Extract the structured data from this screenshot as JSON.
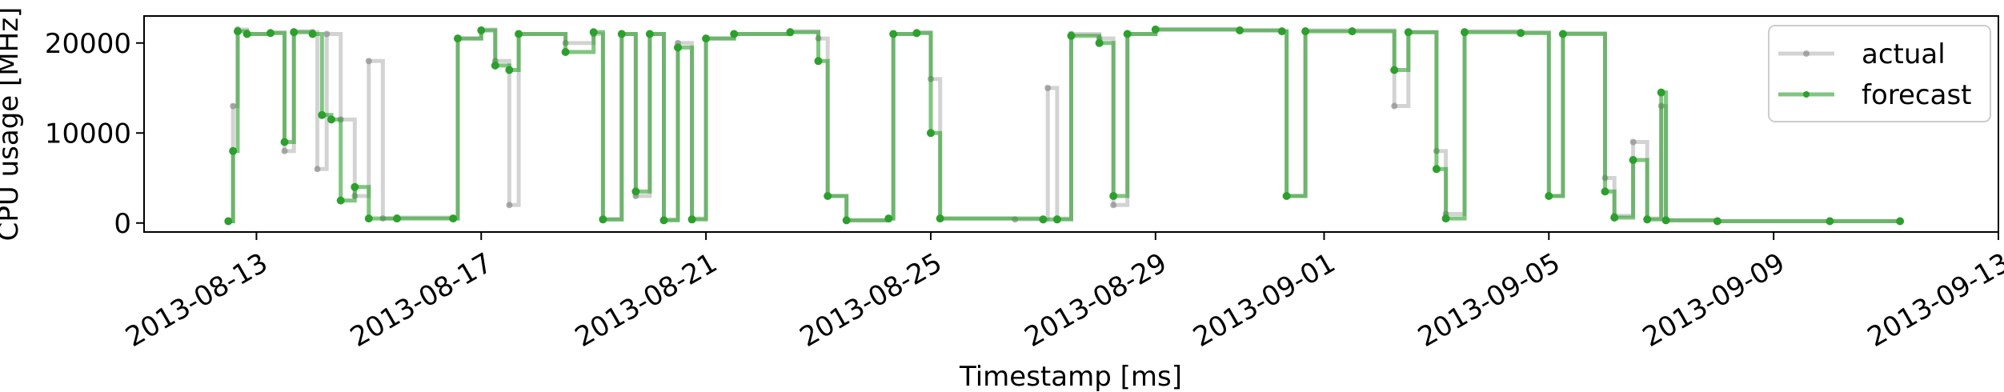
{
  "chart_data": {
    "type": "line",
    "xlabel": "Timestamp [ms]",
    "ylabel": "CPU usage [MHz]",
    "x_ticks": [
      "2013-08-13",
      "2013-08-17",
      "2013-08-21",
      "2013-08-25",
      "2013-08-29",
      "2013-09-01",
      "2013-09-05",
      "2013-09-09",
      "2013-09-13"
    ],
    "x_range": [
      "2013-08-11",
      "2013-09-13"
    ],
    "y_ticks": [
      "0",
      "10000",
      "20000"
    ],
    "ylim": [
      -1000,
      23000
    ],
    "grid": false,
    "legend_position": "top-right",
    "series": [
      {
        "name": "actual",
        "color": "#808080",
        "data": [
          [
            "2013-08-12T12:00",
            200
          ],
          [
            "2013-08-12T14:00",
            13000
          ],
          [
            "2013-08-12T16:00",
            21500
          ],
          [
            "2013-08-12T20:00",
            21000
          ],
          [
            "2013-08-13T06:00",
            21200
          ],
          [
            "2013-08-13T12:00",
            8000
          ],
          [
            "2013-08-13T16:00",
            21300
          ],
          [
            "2013-08-14T00:00",
            21200
          ],
          [
            "2013-08-14T02:00",
            6000
          ],
          [
            "2013-08-14T06:00",
            21000
          ],
          [
            "2013-08-14T12:00",
            11500
          ],
          [
            "2013-08-14T18:00",
            3000
          ],
          [
            "2013-08-15T00:00",
            18000
          ],
          [
            "2013-08-15T06:00",
            500
          ],
          [
            "2013-08-15T12:00",
            600
          ],
          [
            "2013-08-16T12:00",
            500
          ],
          [
            "2013-08-16T14:00",
            20500
          ],
          [
            "2013-08-17T00:00",
            21500
          ],
          [
            "2013-08-17T06:00",
            18000
          ],
          [
            "2013-08-17T12:00",
            2000
          ],
          [
            "2013-08-17T16:00",
            21000
          ],
          [
            "2013-08-18T12:00",
            20000
          ],
          [
            "2013-08-19T00:00",
            21000
          ],
          [
            "2013-08-19T04:00",
            400
          ],
          [
            "2013-08-19T12:00",
            21000
          ],
          [
            "2013-08-19T18:00",
            3000
          ],
          [
            "2013-08-20T00:00",
            21000
          ],
          [
            "2013-08-20T06:00",
            400
          ],
          [
            "2013-08-20T12:00",
            20000
          ],
          [
            "2013-08-20T18:00",
            500
          ],
          [
            "2013-08-21T00:00",
            20500
          ],
          [
            "2013-08-21T12:00",
            21000
          ],
          [
            "2013-08-22T12:00",
            21300
          ],
          [
            "2013-08-23T00:00",
            20500
          ],
          [
            "2013-08-23T04:00",
            3000
          ],
          [
            "2013-08-23T12:00",
            300
          ],
          [
            "2013-08-24T06:00",
            500
          ],
          [
            "2013-08-24T08:00",
            21000
          ],
          [
            "2013-08-24T18:00",
            21200
          ],
          [
            "2013-08-25T00:00",
            16000
          ],
          [
            "2013-08-25T04:00",
            500
          ],
          [
            "2013-08-26T12:00",
            400
          ],
          [
            "2013-08-27T00:00",
            400
          ],
          [
            "2013-08-27T02:00",
            15000
          ],
          [
            "2013-08-27T06:00",
            500
          ],
          [
            "2013-08-27T12:00",
            21000
          ],
          [
            "2013-08-28T00:00",
            20500
          ],
          [
            "2013-08-28T06:00",
            2000
          ],
          [
            "2013-08-28T12:00",
            21000
          ],
          [
            "2013-08-29T00:00",
            21500
          ],
          [
            "2013-08-30T12:00",
            21400
          ],
          [
            "2013-08-31T06:00",
            21300
          ],
          [
            "2013-08-31T08:00",
            3000
          ],
          [
            "2013-08-31T16:00",
            21400
          ],
          [
            "2013-09-01T12:00",
            21400
          ],
          [
            "2013-09-02T06:00",
            13000
          ],
          [
            "2013-09-02T12:00",
            21200
          ],
          [
            "2013-09-03T00:00",
            8000
          ],
          [
            "2013-09-03T04:00",
            1000
          ],
          [
            "2013-09-03T12:00",
            21300
          ],
          [
            "2013-09-04T12:00",
            21200
          ],
          [
            "2013-09-05T00:00",
            3000
          ],
          [
            "2013-09-05T06:00",
            21100
          ],
          [
            "2013-09-06T00:00",
            5000
          ],
          [
            "2013-09-06T04:00",
            800
          ],
          [
            "2013-09-06T12:00",
            9000
          ],
          [
            "2013-09-06T18:00",
            500
          ],
          [
            "2013-09-07T00:00",
            13000
          ],
          [
            "2013-09-07T02:00",
            300
          ],
          [
            "2013-09-08T00:00",
            200
          ],
          [
            "2013-09-10T00:00",
            200
          ],
          [
            "2013-09-11T06:00",
            200
          ]
        ]
      },
      {
        "name": "forecast",
        "color": "#2ca02c",
        "data": [
          [
            "2013-08-12T12:00",
            200
          ],
          [
            "2013-08-12T14:00",
            8000
          ],
          [
            "2013-08-12T16:00",
            21300
          ],
          [
            "2013-08-12T20:00",
            21000
          ],
          [
            "2013-08-13T06:00",
            21100
          ],
          [
            "2013-08-13T12:00",
            9000
          ],
          [
            "2013-08-13T16:00",
            21200
          ],
          [
            "2013-08-14T00:00",
            21000
          ],
          [
            "2013-08-14T04:00",
            12000
          ],
          [
            "2013-08-14T08:00",
            11500
          ],
          [
            "2013-08-14T12:00",
            2500
          ],
          [
            "2013-08-14T18:00",
            4000
          ],
          [
            "2013-08-15T00:00",
            500
          ],
          [
            "2013-08-15T12:00",
            500
          ],
          [
            "2013-08-16T12:00",
            500
          ],
          [
            "2013-08-16T14:00",
            20500
          ],
          [
            "2013-08-17T00:00",
            21400
          ],
          [
            "2013-08-17T06:00",
            17500
          ],
          [
            "2013-08-17T12:00",
            17000
          ],
          [
            "2013-08-17T16:00",
            21000
          ],
          [
            "2013-08-18T12:00",
            19000
          ],
          [
            "2013-08-19T00:00",
            21200
          ],
          [
            "2013-08-19T04:00",
            400
          ],
          [
            "2013-08-19T12:00",
            21000
          ],
          [
            "2013-08-19T18:00",
            3500
          ],
          [
            "2013-08-20T00:00",
            21000
          ],
          [
            "2013-08-20T06:00",
            300
          ],
          [
            "2013-08-20T12:00",
            19500
          ],
          [
            "2013-08-20T18:00",
            400
          ],
          [
            "2013-08-21T00:00",
            20500
          ],
          [
            "2013-08-21T12:00",
            21000
          ],
          [
            "2013-08-22T12:00",
            21200
          ],
          [
            "2013-08-23T00:00",
            18000
          ],
          [
            "2013-08-23T04:00",
            3000
          ],
          [
            "2013-08-23T12:00",
            300
          ],
          [
            "2013-08-24T06:00",
            500
          ],
          [
            "2013-08-24T08:00",
            21000
          ],
          [
            "2013-08-24T18:00",
            21100
          ],
          [
            "2013-08-25T00:00",
            10000
          ],
          [
            "2013-08-25T04:00",
            500
          ],
          [
            "2013-08-27T00:00",
            400
          ],
          [
            "2013-08-27T06:00",
            400
          ],
          [
            "2013-08-27T12:00",
            20800
          ],
          [
            "2013-08-28T00:00",
            20000
          ],
          [
            "2013-08-28T06:00",
            3000
          ],
          [
            "2013-08-28T12:00",
            21000
          ],
          [
            "2013-08-29T00:00",
            21500
          ],
          [
            "2013-08-30T12:00",
            21400
          ],
          [
            "2013-08-31T06:00",
            21300
          ],
          [
            "2013-08-31T08:00",
            3000
          ],
          [
            "2013-08-31T16:00",
            21300
          ],
          [
            "2013-09-01T12:00",
            21300
          ],
          [
            "2013-09-02T06:00",
            17000
          ],
          [
            "2013-09-02T12:00",
            21200
          ],
          [
            "2013-09-03T00:00",
            6000
          ],
          [
            "2013-09-03T04:00",
            500
          ],
          [
            "2013-09-03T12:00",
            21200
          ],
          [
            "2013-09-04T12:00",
            21100
          ],
          [
            "2013-09-05T00:00",
            3000
          ],
          [
            "2013-09-05T06:00",
            21000
          ],
          [
            "2013-09-06T00:00",
            3500
          ],
          [
            "2013-09-06T04:00",
            600
          ],
          [
            "2013-09-06T12:00",
            7000
          ],
          [
            "2013-09-06T18:00",
            400
          ],
          [
            "2013-09-07T00:00",
            14500
          ],
          [
            "2013-09-07T02:00",
            300
          ],
          [
            "2013-09-08T00:00",
            200
          ],
          [
            "2013-09-10T00:00",
            200
          ],
          [
            "2013-09-11T06:00",
            200
          ]
        ]
      }
    ]
  }
}
